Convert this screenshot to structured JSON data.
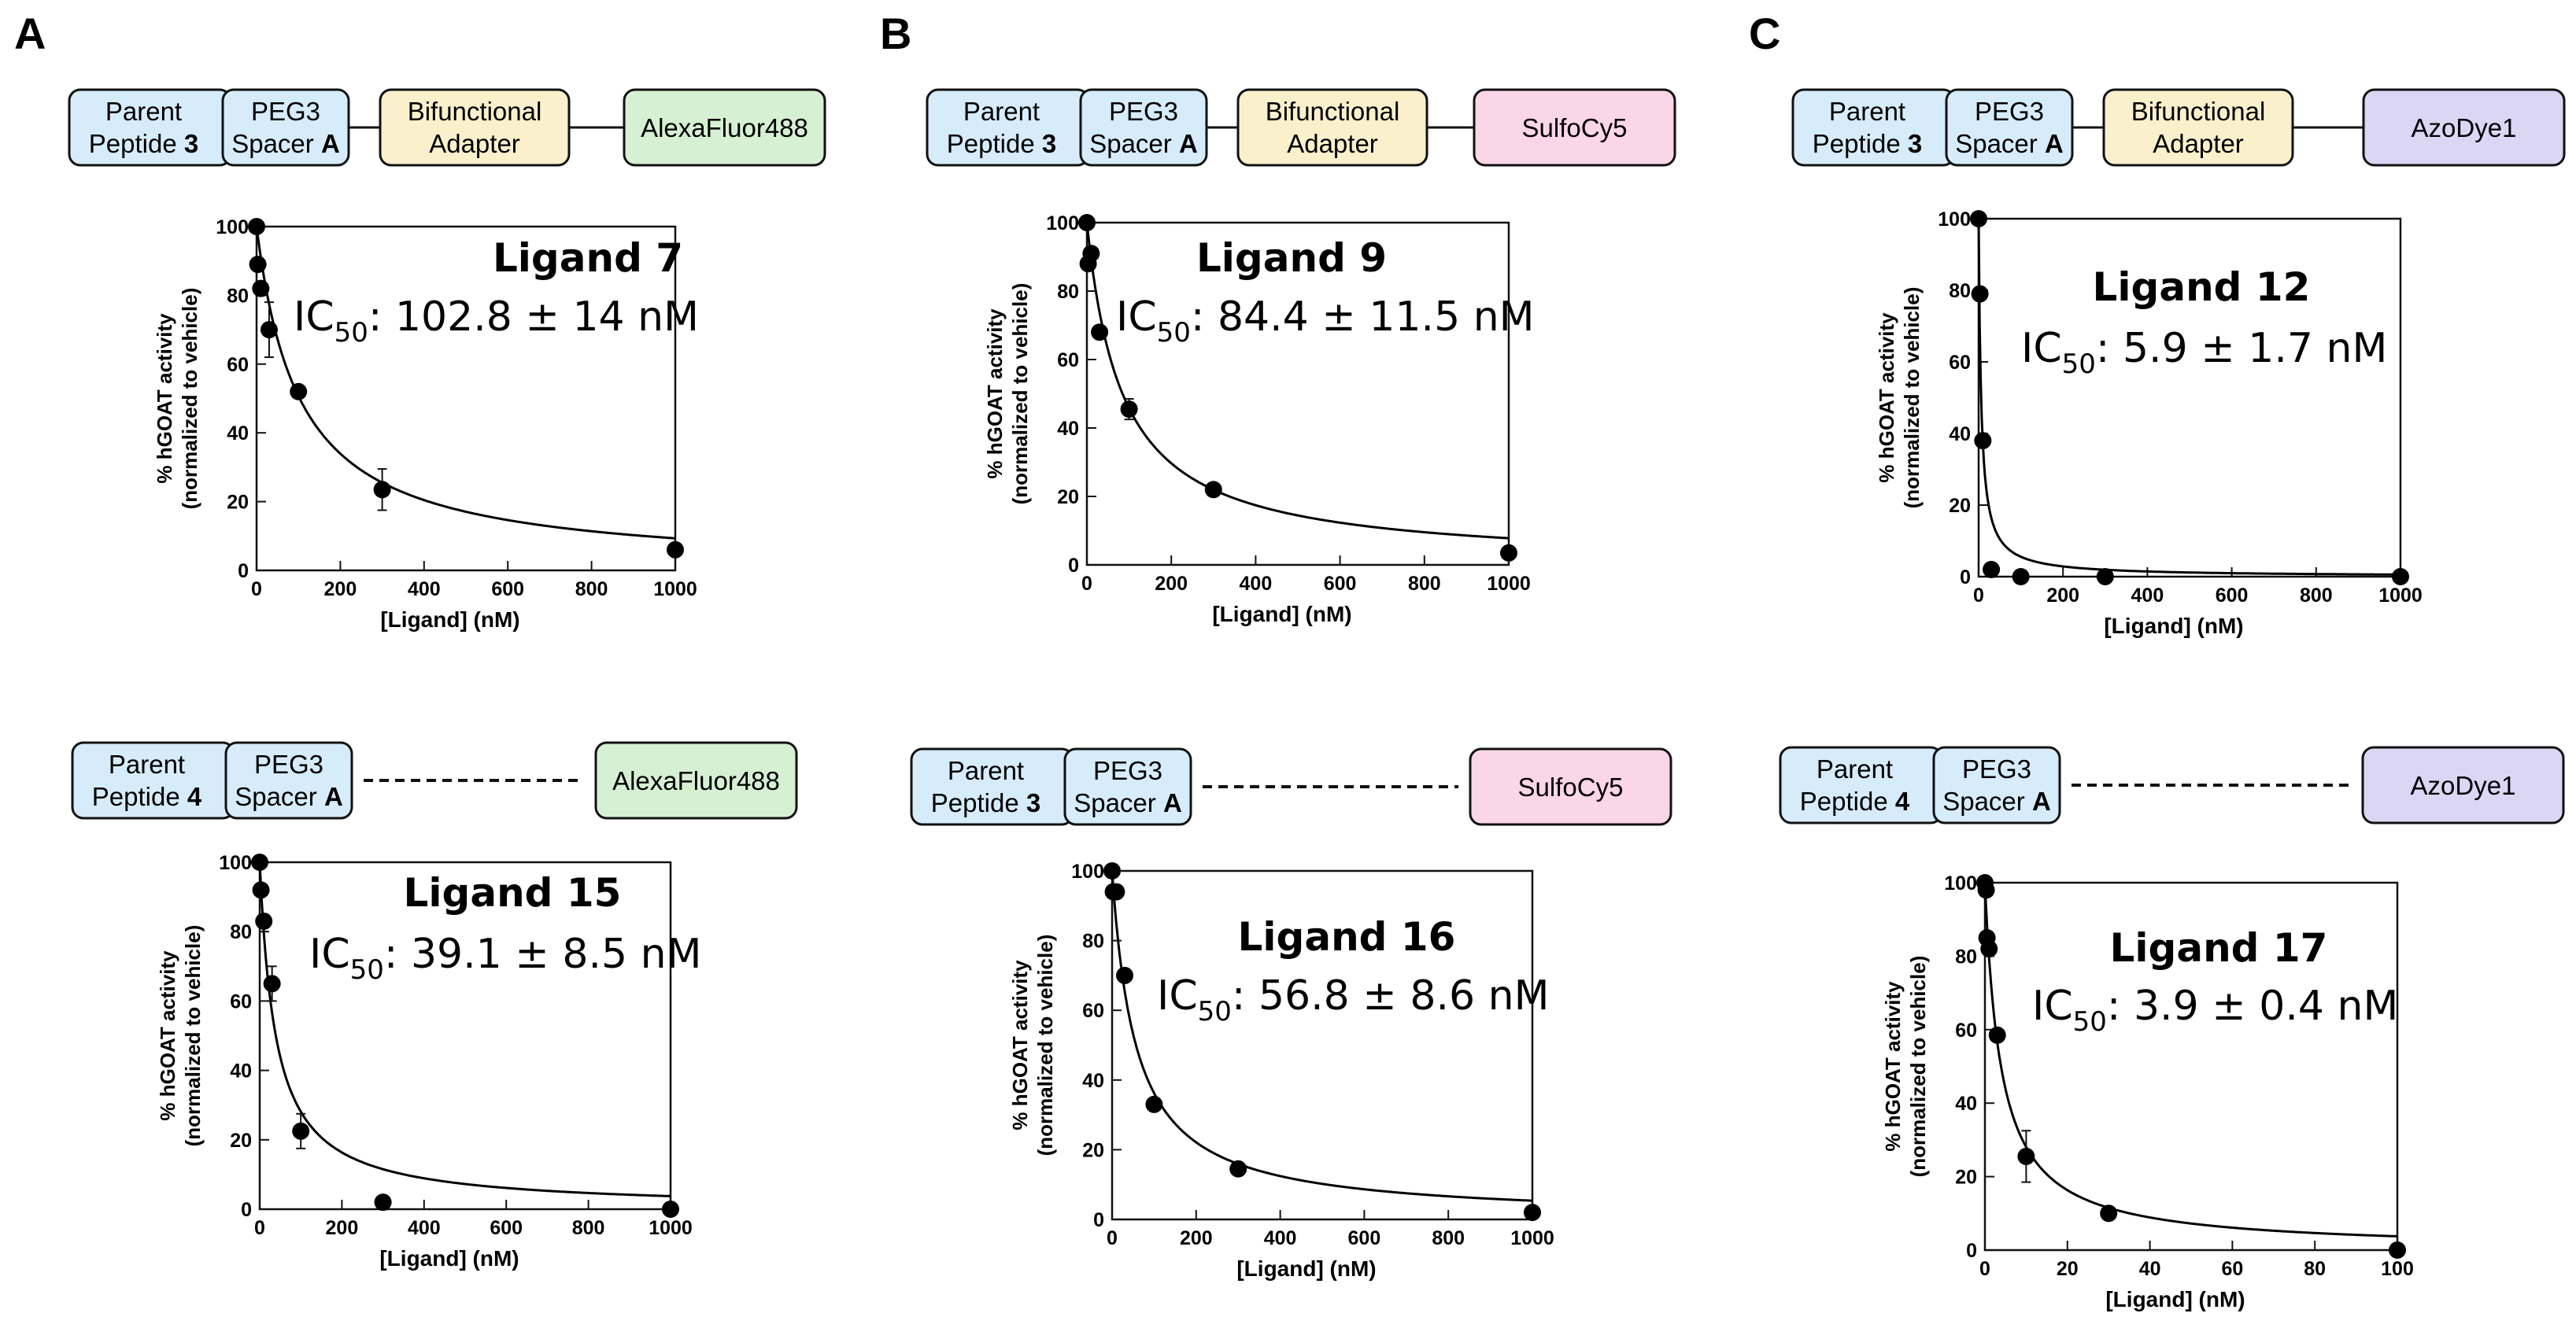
{
  "panel_letters": [
    "A",
    "B",
    "C"
  ],
  "colors": {
    "peptide_fill": "#d6ecfa",
    "adapter_fill": "#faf1cc",
    "alexa_fill": "#d6f0d3",
    "sulfo_fill": "#fbd6e8",
    "azo_fill": "#dcd6f5",
    "curve": "#000000"
  },
  "chart_data": [
    {
      "type": "scatter",
      "panel": "A",
      "construct": {
        "parent_line1": "Parent",
        "parent_line2": "Peptide",
        "parent_num": "3",
        "spacer_line1": "PEG3",
        "spacer_line2": "Spacer",
        "spacer_letter": "A",
        "adapter_line1": "Bifunctional",
        "adapter_line2": "Adapter",
        "dye": "AlexaFluor488",
        "dye_color": "alexa",
        "linker": "solid"
      },
      "title": "Ligand 7",
      "ic50_label": "IC",
      "ic50_sub": "50",
      "ic50_value": ": 102.8 ± 14 nM",
      "xlabel": "[Ligand] (nM)",
      "ylabel_line1": "% hGOAT activity",
      "ylabel_line2": "(normalized to vehicle)",
      "xlim": [
        0,
        1000
      ],
      "ylim": [
        0,
        100
      ],
      "xticks": [
        0,
        200,
        400,
        600,
        800,
        1000
      ],
      "yticks": [
        0,
        20,
        40,
        60,
        80,
        100
      ],
      "ic50": 102.8,
      "x": [
        0,
        3,
        10,
        30,
        100,
        300,
        1000
      ],
      "y": [
        100,
        89,
        82,
        70,
        52,
        23.5,
        6
      ],
      "err": [
        0,
        0,
        0,
        8,
        0,
        6,
        0
      ]
    },
    {
      "type": "scatter",
      "panel": "B",
      "construct": {
        "parent_line1": "Parent",
        "parent_line2": "Peptide",
        "parent_num": "3",
        "spacer_line1": "PEG3",
        "spacer_line2": "Spacer",
        "spacer_letter": "A",
        "adapter_line1": "Bifunctional",
        "adapter_line2": "Adapter",
        "dye": "SulfoCy5",
        "dye_color": "sulfo",
        "linker": "solid"
      },
      "title": "Ligand 9",
      "ic50_label": "IC",
      "ic50_sub": "50",
      "ic50_value": ": 84.4 ± 11.5 nM",
      "xlabel": "[Ligand] (nM)",
      "ylabel_line1": "% hGOAT activity",
      "ylabel_line2": "(normalized to vehicle)",
      "xlim": [
        0,
        1000
      ],
      "ylim": [
        0,
        100
      ],
      "xticks": [
        0,
        200,
        400,
        600,
        800,
        1000
      ],
      "yticks": [
        0,
        20,
        40,
        60,
        80,
        100
      ],
      "ic50": 84.4,
      "x": [
        0,
        3,
        10,
        30,
        100,
        300,
        1000
      ],
      "y": [
        100,
        88,
        91,
        68,
        45.5,
        22,
        3.5
      ],
      "err": [
        0,
        0,
        0,
        0,
        3,
        0,
        0
      ]
    },
    {
      "type": "scatter",
      "panel": "C",
      "construct": {
        "parent_line1": "Parent",
        "parent_line2": "Peptide",
        "parent_num": "3",
        "spacer_line1": "PEG3",
        "spacer_line2": "Spacer",
        "spacer_letter": "A",
        "adapter_line1": "Bifunctional",
        "adapter_line2": "Adapter",
        "dye": "AzoDye1",
        "dye_color": "azo",
        "linker": "solid"
      },
      "title": "Ligand 12",
      "ic50_label": "IC",
      "ic50_sub": "50",
      "ic50_value": ": 5.9 ±  1.7 nM",
      "xlabel": "[Ligand] (nM)",
      "ylabel_line1": "% hGOAT activity",
      "ylabel_line2": "(normalized to vehicle)",
      "xlim": [
        0,
        1000
      ],
      "ylim": [
        0,
        100
      ],
      "xticks": [
        0,
        200,
        400,
        600,
        800,
        1000
      ],
      "yticks": [
        0,
        20,
        40,
        60,
        80,
        100
      ],
      "ic50": 5.9,
      "x": [
        0,
        3,
        10,
        30,
        100,
        300,
        1000
      ],
      "y": [
        100,
        79,
        38,
        2,
        0,
        0,
        0
      ],
      "err": [
        0,
        0,
        0,
        0,
        0,
        0,
        0
      ]
    },
    {
      "type": "scatter",
      "panel": "A",
      "construct": {
        "parent_line1": "Parent",
        "parent_line2": "Peptide",
        "parent_num": "4",
        "spacer_line1": "PEG3",
        "spacer_line2": "Spacer",
        "spacer_letter": "A",
        "dye": "AlexaFluor488",
        "dye_color": "alexa",
        "linker": "dashed"
      },
      "title": "Ligand 15",
      "ic50_label": "IC",
      "ic50_sub": "50",
      "ic50_value": ": 39.1 ± 8.5 nM",
      "xlabel": "[Ligand] (nM)",
      "ylabel_line1": "% hGOAT activity",
      "ylabel_line2": "(normalized to vehicle)",
      "xlim": [
        0,
        1000
      ],
      "ylim": [
        0,
        100
      ],
      "xticks": [
        0,
        200,
        400,
        600,
        800,
        1000
      ],
      "yticks": [
        0,
        20,
        40,
        60,
        80,
        100
      ],
      "ic50": 39.1,
      "x": [
        0,
        3,
        10,
        30,
        100,
        300,
        1000
      ],
      "y": [
        100,
        92,
        83,
        65,
        22.5,
        2,
        0
      ],
      "err": [
        0,
        0,
        0,
        5,
        5,
        0,
        0
      ]
    },
    {
      "type": "scatter",
      "panel": "B",
      "construct": {
        "parent_line1": "Parent",
        "parent_line2": "Peptide",
        "parent_num": "3",
        "spacer_line1": "PEG3",
        "spacer_line2": "Spacer",
        "spacer_letter": "A",
        "dye": "SulfoCy5",
        "dye_color": "sulfo",
        "linker": "dashed"
      },
      "title": "Ligand 16",
      "ic50_label": "IC",
      "ic50_sub": "50",
      "ic50_value": ": 56.8 ± 8.6 nM",
      "xlabel": "[Ligand] (nM)",
      "ylabel_line1": "% hGOAT activity",
      "ylabel_line2": "(normalized to vehicle)",
      "xlim": [
        0,
        1000
      ],
      "ylim": [
        0,
        100
      ],
      "xticks": [
        0,
        200,
        400,
        600,
        800,
        1000
      ],
      "yticks": [
        0,
        20,
        40,
        60,
        80,
        100
      ],
      "ic50": 56.8,
      "x": [
        0,
        3,
        10,
        30,
        100,
        300,
        1000
      ],
      "y": [
        100,
        94,
        94,
        70,
        33,
        14.5,
        2
      ],
      "err": [
        0,
        0,
        0,
        0,
        0,
        0,
        0
      ]
    },
    {
      "type": "scatter",
      "panel": "C",
      "construct": {
        "parent_line1": "Parent",
        "parent_line2": "Peptide",
        "parent_num": "4",
        "spacer_line1": "PEG3",
        "spacer_line2": "Spacer",
        "spacer_letter": "A",
        "dye": "AzoDye1",
        "dye_color": "azo",
        "linker": "dashed"
      },
      "title": "Ligand 17",
      "ic50_label": "IC",
      "ic50_sub": "50",
      "ic50_value": ": 3.9 ±  0.4 nM",
      "xlabel": "[Ligand] (nM)",
      "ylabel_line1": "% hGOAT activity",
      "ylabel_line2": "(normalized to vehicle)",
      "xlim": [
        0,
        100
      ],
      "ylim": [
        0,
        100
      ],
      "xticks": [
        0,
        20,
        40,
        60,
        80,
        100
      ],
      "yticks": [
        0,
        20,
        40,
        60,
        80,
        100
      ],
      "ic50": 3.9,
      "x": [
        0,
        0.3,
        0.5,
        1,
        3,
        10,
        30,
        100
      ],
      "y": [
        100,
        98,
        85,
        82,
        58.5,
        25.5,
        10,
        0
      ],
      "err": [
        0,
        0,
        0,
        0,
        0,
        7,
        0,
        0
      ]
    }
  ]
}
